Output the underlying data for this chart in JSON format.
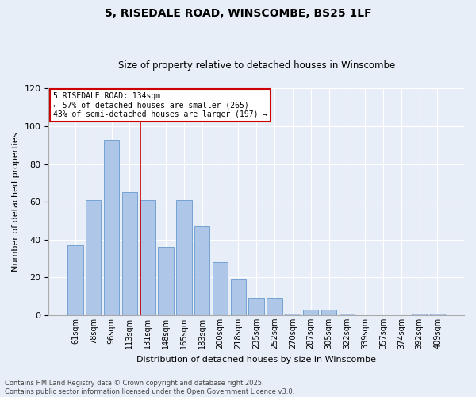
{
  "title": "5, RISEDALE ROAD, WINSCOMBE, BS25 1LF",
  "subtitle": "Size of property relative to detached houses in Winscombe",
  "xlabel": "Distribution of detached houses by size in Winscombe",
  "ylabel": "Number of detached properties",
  "categories": [
    "61sqm",
    "78sqm",
    "96sqm",
    "113sqm",
    "131sqm",
    "148sqm",
    "165sqm",
    "183sqm",
    "200sqm",
    "218sqm",
    "235sqm",
    "252sqm",
    "270sqm",
    "287sqm",
    "305sqm",
    "322sqm",
    "339sqm",
    "357sqm",
    "374sqm",
    "392sqm",
    "409sqm"
  ],
  "values": [
    37,
    61,
    93,
    65,
    61,
    36,
    61,
    47,
    28,
    19,
    9,
    9,
    1,
    3,
    3,
    1,
    0,
    0,
    0,
    1,
    1
  ],
  "bar_color": "#aec6e8",
  "bar_edge_color": "#6699cc",
  "ylim": [
    0,
    120
  ],
  "yticks": [
    0,
    20,
    40,
    60,
    80,
    100,
    120
  ],
  "annotation_line1": "5 RISEDALE ROAD: 134sqm",
  "annotation_line2": "← 57% of detached houses are smaller (265)",
  "annotation_line3": "43% of semi-detached houses are larger (197) →",
  "vline_bin_index": 4,
  "footer1": "Contains HM Land Registry data © Crown copyright and database right 2025.",
  "footer2": "Contains public sector information licensed under the Open Government Licence v3.0.",
  "bg_color": "#e8eef8",
  "plot_bg_color": "#e8eef8",
  "grid_color": "#ffffff",
  "annotation_box_edge": "#cc0000",
  "vline_color": "#cc0000",
  "title_fontsize": 10,
  "subtitle_fontsize": 8.5,
  "ylabel_fontsize": 8,
  "xlabel_fontsize": 8,
  "tick_fontsize": 7,
  "footer_fontsize": 6
}
